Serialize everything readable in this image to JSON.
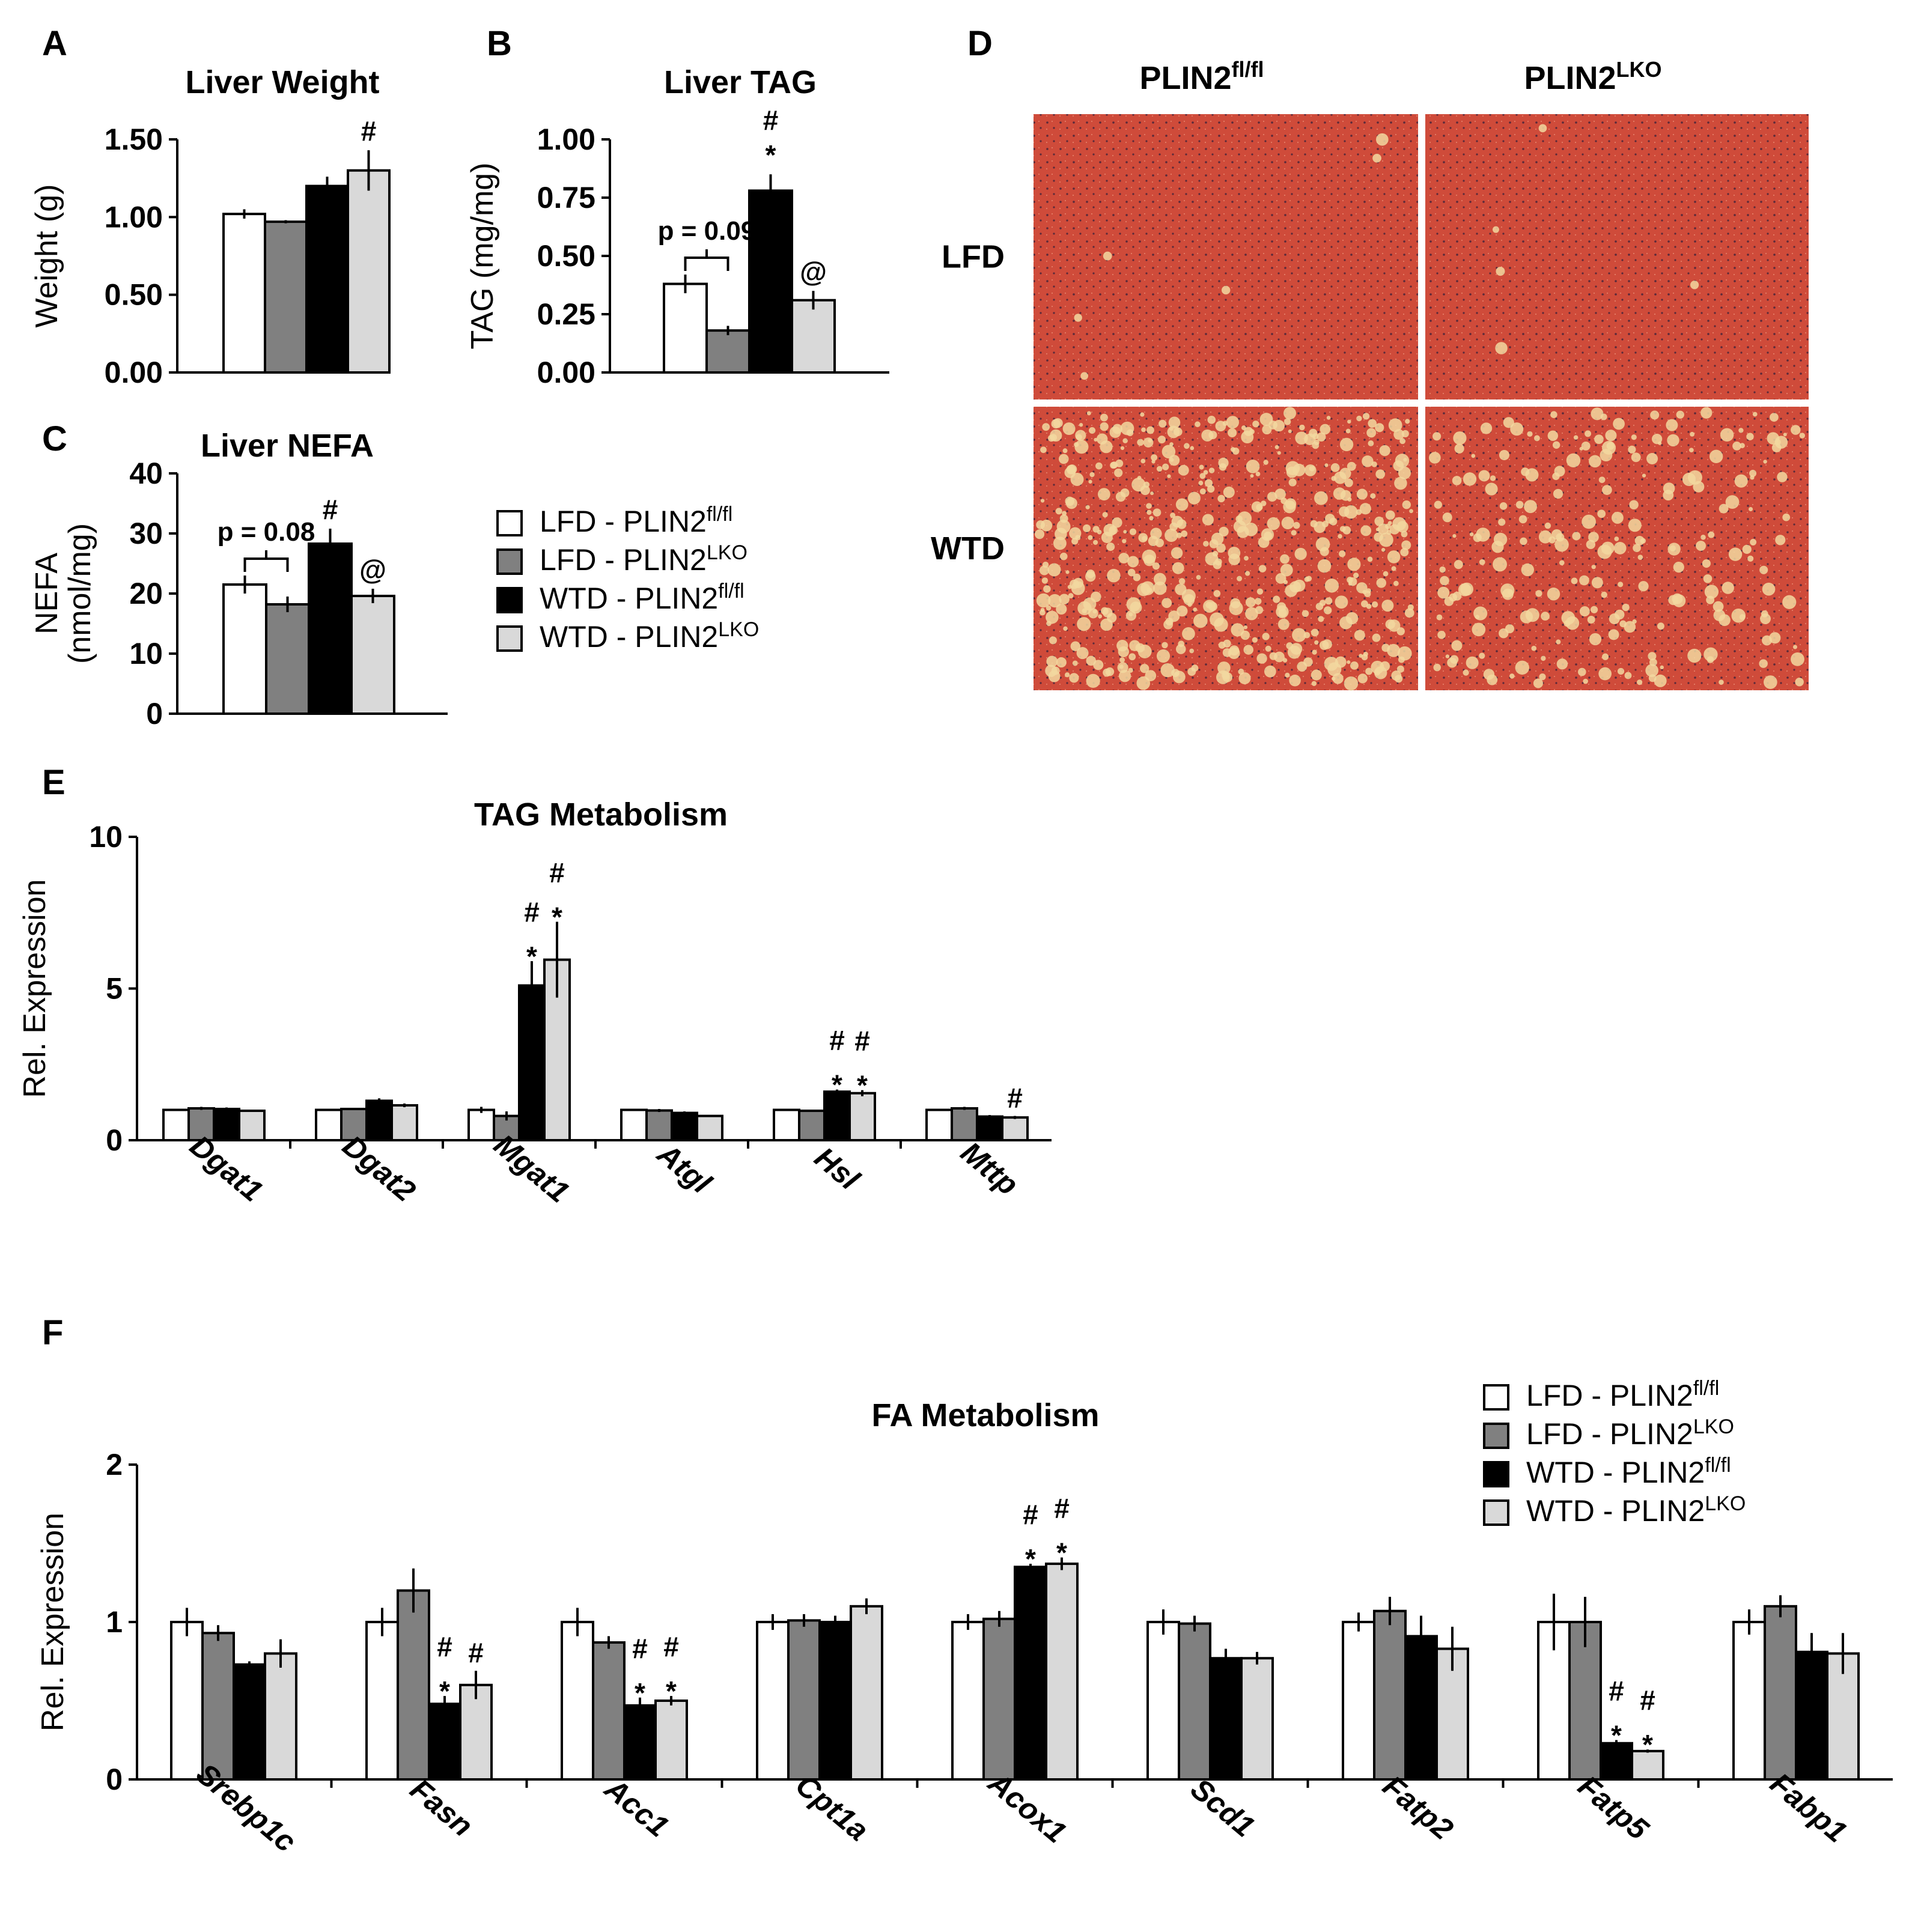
{
  "colors": {
    "lfd_fl": "#ffffff",
    "lfd_lko": "#808080",
    "wtd_fl": "#000000",
    "wtd_lko": "#d9d9d9",
    "tissue": "#cf4b3a",
    "lipid": "#f2d8a0"
  },
  "legend": [
    {
      "diet": "LFD - PLIN2",
      "sup": "fl/fl"
    },
    {
      "diet": "LFD - PLIN2",
      "sup": "LKO"
    },
    {
      "diet": "WTD - PLIN2",
      "sup": "fl/fl"
    },
    {
      "diet": "WTD - PLIN2",
      "sup": "LKO"
    }
  ],
  "histology": {
    "letter": "D",
    "col_labels": [
      {
        "text": "PLIN2",
        "sup": "fl/fl"
      },
      {
        "text": "PLIN2",
        "sup": "LKO"
      }
    ],
    "row_labels": [
      "LFD",
      "WTD"
    ]
  },
  "chart_data": [
    {
      "id": "A",
      "type": "bar",
      "title": "Liver Weight",
      "ylabel": "Weight (g)",
      "ylim": [
        0,
        1.5
      ],
      "yticks": [
        "0.00",
        "0.50",
        "1.00",
        "1.50"
      ],
      "series": [
        {
          "name": "LFD - PLIN2fl/fl",
          "values": [
            1.02
          ]
        },
        {
          "name": "LFD - PLIN2LKO",
          "values": [
            0.97
          ]
        },
        {
          "name": "WTD - PLIN2fl/fl",
          "values": [
            1.2
          ]
        },
        {
          "name": "WTD - PLIN2LKO",
          "values": [
            1.3
          ]
        }
      ],
      "errors": [
        0.03,
        0.01,
        0.06,
        0.13
      ],
      "annotations": [
        {
          "bar": 3,
          "text": "#"
        }
      ]
    },
    {
      "id": "B",
      "type": "bar",
      "title": "Liver TAG",
      "ylabel": "TAG (mg/mg)",
      "ylim": [
        0,
        1.0
      ],
      "yticks": [
        "0.00",
        "0.25",
        "0.50",
        "0.75",
        "1.00"
      ],
      "series": [
        {
          "name": "LFD - PLIN2fl/fl",
          "values": [
            0.38
          ]
        },
        {
          "name": "LFD - PLIN2LKO",
          "values": [
            0.18
          ]
        },
        {
          "name": "WTD - PLIN2fl/fl",
          "values": [
            0.78
          ]
        },
        {
          "name": "WTD - PLIN2LKO",
          "values": [
            0.31
          ]
        }
      ],
      "errors": [
        0.04,
        0.02,
        0.07,
        0.04
      ],
      "annotations": [
        {
          "bar": 2,
          "text": "*"
        },
        {
          "bar": 2,
          "text": "#"
        },
        {
          "bar": 3,
          "text": "@"
        }
      ],
      "pvalue": {
        "text": "p = 0.09",
        "bars": [
          0,
          1
        ]
      }
    },
    {
      "id": "C",
      "type": "bar",
      "title": "Liver NEFA",
      "ylabel": "NEFA",
      "ylabel2": "(nmol/mg)",
      "ylim": [
        0,
        40
      ],
      "yticks": [
        "0",
        "10",
        "20",
        "30",
        "40"
      ],
      "series": [
        {
          "name": "LFD - PLIN2fl/fl",
          "values": [
            21.5
          ]
        },
        {
          "name": "LFD - PLIN2LKO",
          "values": [
            18.2
          ]
        },
        {
          "name": "WTD - PLIN2fl/fl",
          "values": [
            28.3
          ]
        },
        {
          "name": "WTD - PLIN2LKO",
          "values": [
            19.6
          ]
        }
      ],
      "errors": [
        1.5,
        1.3,
        2.5,
        1.2
      ],
      "annotations": [
        {
          "bar": 2,
          "text": "#"
        },
        {
          "bar": 3,
          "text": "@"
        }
      ],
      "pvalue": {
        "text": "p = 0.08",
        "bars": [
          0,
          1
        ]
      }
    },
    {
      "id": "E",
      "type": "bar",
      "title": "TAG Metabolism",
      "ylabel": "Rel. Expression",
      "ylim": [
        0,
        10
      ],
      "yticks": [
        "0",
        "5",
        "10"
      ],
      "categories": [
        "Dgat1",
        "Dgat2",
        "Mgat1",
        "Atgl",
        "Hsl",
        "Mttp"
      ],
      "series": [
        {
          "name": "LFD - PLIN2fl/fl",
          "values": [
            1.0,
            1.0,
            1.0,
            1.0,
            1.0,
            1.0
          ],
          "errors": [
            0.03,
            0.03,
            0.1,
            0.03,
            0.03,
            0.03
          ]
        },
        {
          "name": "LFD - PLIN2LKO",
          "values": [
            1.05,
            1.03,
            0.8,
            0.98,
            0.97,
            1.05
          ],
          "errors": [
            0.05,
            0.03,
            0.15,
            0.05,
            0.03,
            0.05
          ]
        },
        {
          "name": "WTD - PLIN2fl/fl",
          "values": [
            1.03,
            1.3,
            5.1,
            0.9,
            1.6,
            0.78
          ],
          "errors": [
            0.05,
            0.08,
            0.8,
            0.05,
            0.07,
            0.05
          ]
        },
        {
          "name": "WTD - PLIN2LKO",
          "values": [
            0.97,
            1.15,
            5.95,
            0.8,
            1.55,
            0.75
          ],
          "errors": [
            0.03,
            0.06,
            1.25,
            0.03,
            0.1,
            0.05
          ]
        }
      ],
      "annotations": [
        {
          "cat": 2,
          "bar": 2,
          "marks": [
            "*",
            "#"
          ]
        },
        {
          "cat": 2,
          "bar": 3,
          "marks": [
            "*",
            "#"
          ]
        },
        {
          "cat": 4,
          "bar": 2,
          "marks": [
            "*",
            "#"
          ]
        },
        {
          "cat": 4,
          "bar": 3,
          "marks": [
            "*",
            "#"
          ]
        },
        {
          "cat": 5,
          "bar": 3,
          "marks": [
            "#"
          ]
        }
      ]
    },
    {
      "id": "F",
      "type": "bar",
      "title": "FA Metabolism",
      "ylabel": "Rel. Expression",
      "ylim": [
        0,
        2
      ],
      "yticks": [
        "0",
        "1",
        "2"
      ],
      "categories": [
        "Srebp1c",
        "Fasn",
        "Acc1",
        "Cpt1a",
        "Acox1",
        "Scd1",
        "Fatp2",
        "Fatp5",
        "Fabp1"
      ],
      "series": [
        {
          "name": "LFD - PLIN2fl/fl",
          "values": [
            1.0,
            1.0,
            1.0,
            1.0,
            1.0,
            1.0,
            1.0,
            1.0,
            1.0
          ],
          "errors": [
            0.09,
            0.09,
            0.09,
            0.05,
            0.05,
            0.08,
            0.06,
            0.18,
            0.08
          ]
        },
        {
          "name": "LFD - PLIN2LKO",
          "values": [
            0.93,
            1.2,
            0.87,
            1.01,
            1.02,
            0.99,
            1.07,
            1.0,
            1.1
          ]
        },
        {
          "name": "WTD - PLIN2fl/fl",
          "values": [
            0.73,
            0.48,
            0.47,
            1.0,
            1.35,
            0.77,
            0.91,
            0.23,
            0.81
          ]
        },
        {
          "name": "WTD - PLIN2LKO",
          "values": [
            0.8,
            0.6,
            0.5,
            1.1,
            1.37,
            0.77,
            0.83,
            0.18,
            0.8
          ]
        }
      ],
      "errors_by_series": [
        [
          0.09,
          0.09,
          0.09,
          0.05,
          0.05,
          0.08,
          0.06,
          0.18,
          0.08
        ],
        [
          0.05,
          0.14,
          0.04,
          0.04,
          0.05,
          0.05,
          0.09,
          0.16,
          0.07
        ],
        [
          0.02,
          0.05,
          0.05,
          0.04,
          0.02,
          0.06,
          0.13,
          0.02,
          0.12
        ],
        [
          0.09,
          0.09,
          0.03,
          0.05,
          0.04,
          0.04,
          0.14,
          0.01,
          0.13
        ]
      ],
      "annotations": [
        {
          "cat": 1,
          "bar": 2,
          "marks": [
            "*",
            "#"
          ]
        },
        {
          "cat": 1,
          "bar": 3,
          "marks": [
            "#"
          ]
        },
        {
          "cat": 2,
          "bar": 2,
          "marks": [
            "*",
            "#"
          ]
        },
        {
          "cat": 2,
          "bar": 3,
          "marks": [
            "*",
            "#"
          ]
        },
        {
          "cat": 4,
          "bar": 2,
          "marks": [
            "*",
            "#"
          ]
        },
        {
          "cat": 4,
          "bar": 3,
          "marks": [
            "*",
            "#"
          ]
        },
        {
          "cat": 7,
          "bar": 2,
          "marks": [
            "*",
            "#"
          ]
        },
        {
          "cat": 7,
          "bar": 3,
          "marks": [
            "*",
            "#"
          ]
        }
      ]
    }
  ]
}
